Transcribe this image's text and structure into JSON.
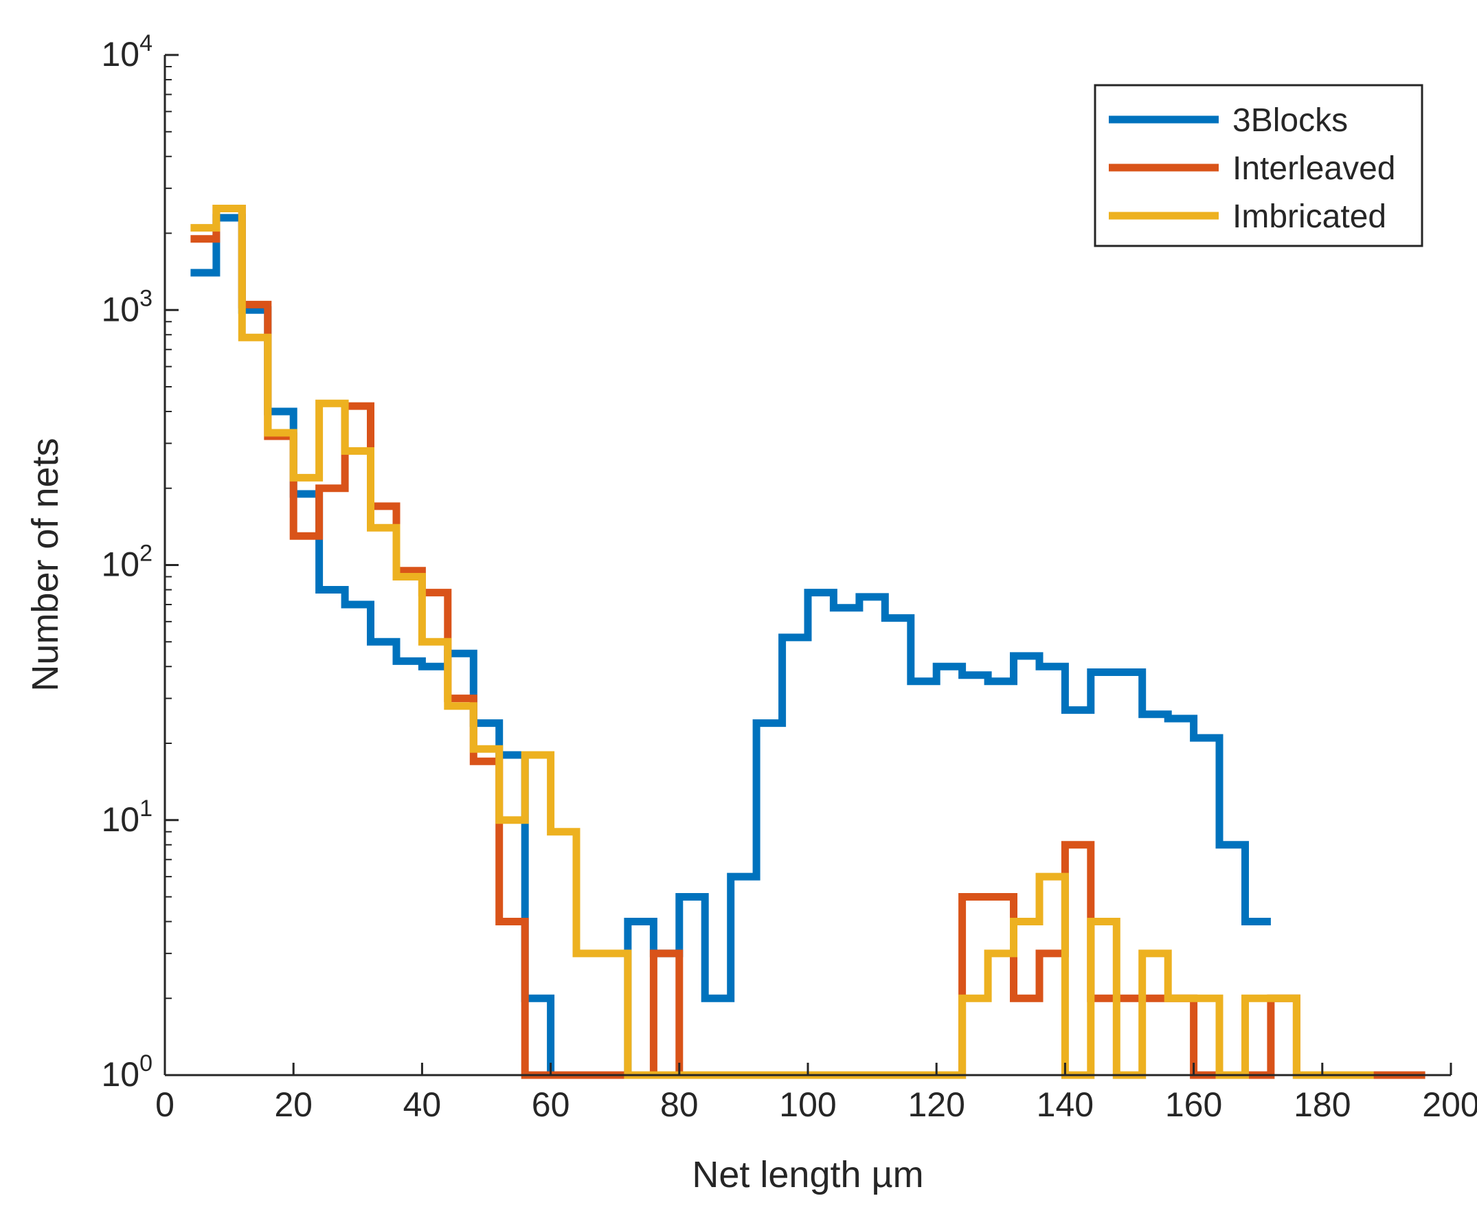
{
  "chart_data": {
    "type": "histogram-stairs",
    "title": "",
    "xlabel": "Net length µm",
    "ylabel": "Number of nets",
    "yscale": "log",
    "xlim": [
      0,
      200
    ],
    "ylim": [
      1,
      10000
    ],
    "bin_width": 4,
    "x_ticks": [
      0,
      20,
      40,
      60,
      80,
      100,
      120,
      140,
      160,
      180,
      200
    ],
    "x_tick_labels": [
      "0",
      "20",
      "40",
      "60",
      "80",
      "100",
      "120",
      "140",
      "160",
      "180",
      "200"
    ],
    "y_ticks": [
      {
        "value": 1,
        "base": "10",
        "exp": "0"
      },
      {
        "value": 10,
        "base": "10",
        "exp": "1"
      },
      {
        "value": 100,
        "base": "10",
        "exp": "2"
      },
      {
        "value": 1000,
        "base": "10",
        "exp": "3"
      },
      {
        "value": 10000,
        "base": "10",
        "exp": "4"
      }
    ],
    "legend_position": "top-right",
    "series": [
      {
        "name": "3Blocks",
        "color": "#0072BD",
        "bin_edges": [
          4,
          8,
          12,
          16,
          20,
          24,
          28,
          32,
          36,
          40,
          44,
          48,
          52,
          56,
          60,
          64,
          68,
          72,
          76,
          80,
          84,
          88,
          92,
          96,
          100,
          104,
          108,
          112,
          116,
          120,
          124,
          128,
          132,
          136,
          140,
          144,
          148,
          152,
          156,
          160,
          164,
          168,
          172
        ],
        "values": [
          1400,
          2300,
          1000,
          400,
          190,
          80,
          70,
          50,
          42,
          40,
          45,
          24,
          18,
          2,
          1,
          1,
          1,
          4,
          3,
          5,
          2,
          6,
          24,
          52,
          78,
          68,
          75,
          62,
          35,
          40,
          37,
          35,
          44,
          40,
          27,
          38,
          38,
          26,
          25,
          21,
          8,
          4
        ]
      },
      {
        "name": "Interleaved",
        "color": "#D95319",
        "bin_edges": [
          4,
          8,
          12,
          16,
          20,
          24,
          28,
          32,
          36,
          40,
          44,
          48,
          52,
          56,
          60,
          64,
          68,
          72,
          76,
          80,
          84,
          88,
          92,
          96,
          100,
          104,
          108,
          112,
          116,
          120,
          124,
          128,
          132,
          136,
          140,
          144,
          148,
          152,
          156,
          160,
          164,
          168,
          172,
          176,
          180,
          184,
          188,
          192,
          196
        ],
        "values": [
          1900,
          2500,
          1050,
          320,
          130,
          200,
          420,
          170,
          95,
          78,
          30,
          17,
          4,
          1,
          1,
          1,
          1,
          1,
          3,
          1,
          1,
          1,
          1,
          1,
          1,
          1,
          1,
          1,
          1,
          1,
          5,
          5,
          2,
          3,
          8,
          2,
          2,
          2,
          2,
          1,
          1,
          1,
          2,
          1,
          1,
          1,
          1,
          1
        ]
      },
      {
        "name": "Imbricated",
        "color": "#EDB120",
        "bin_edges": [
          4,
          8,
          12,
          16,
          20,
          24,
          28,
          32,
          36,
          40,
          44,
          48,
          52,
          56,
          60,
          64,
          68,
          72,
          76,
          80,
          84,
          88,
          92,
          96,
          100,
          104,
          108,
          112,
          116,
          120,
          124,
          128,
          132,
          136,
          140,
          144,
          148,
          152,
          156,
          160,
          164,
          168,
          172,
          176,
          180,
          184,
          188
        ],
        "values": [
          2100,
          2500,
          780,
          330,
          220,
          430,
          280,
          140,
          90,
          50,
          28,
          19,
          10,
          18,
          9,
          3,
          3,
          1,
          1,
          1,
          1,
          1,
          1,
          1,
          1,
          1,
          1,
          1,
          1,
          1,
          2,
          3,
          4,
          6,
          1,
          4,
          1,
          3,
          2,
          2,
          1,
          2,
          2,
          1,
          1,
          1
        ]
      }
    ]
  }
}
